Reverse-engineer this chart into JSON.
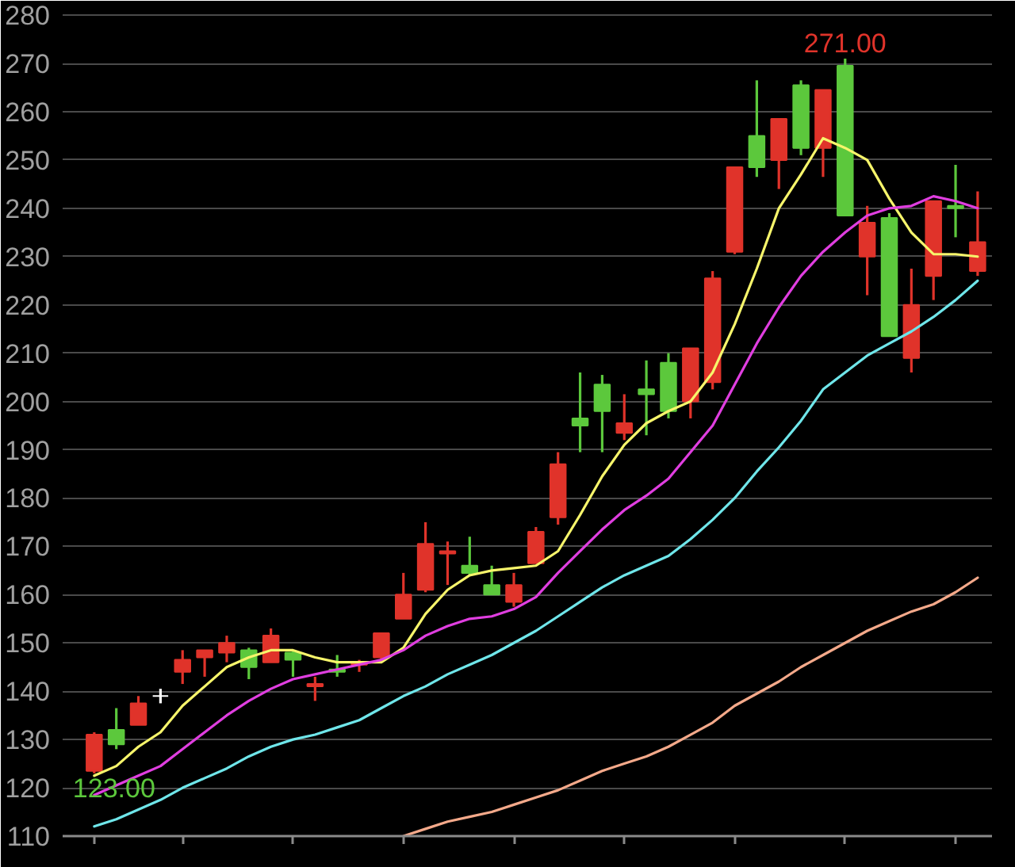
{
  "chart_data": {
    "type": "candlestick",
    "categories": [
      null,
      null,
      null,
      null,
      null,
      null,
      null,
      null,
      null,
      null,
      null,
      null,
      null,
      null,
      null,
      null,
      null,
      null,
      null,
      null,
      null,
      null,
      null,
      null,
      null,
      null,
      null,
      null,
      null,
      null,
      null,
      null,
      null,
      null,
      null,
      null,
      null,
      null,
      null,
      null,
      null
    ],
    "ohlc": [
      [
        123.5,
        131.5,
        123,
        131
      ],
      [
        132,
        136.5,
        128,
        129
      ],
      [
        133,
        139,
        133,
        137.5
      ],
      [
        139,
        140.5,
        137.5,
        139
      ],
      [
        144,
        148.5,
        141.5,
        146.5
      ],
      [
        147,
        148.5,
        143,
        148.5
      ],
      [
        148,
        151.5,
        146,
        150
      ],
      [
        148.5,
        149,
        142.5,
        145
      ],
      [
        146,
        153,
        146,
        151.5
      ],
      [
        148,
        148.5,
        143,
        146.5
      ],
      [
        141,
        143,
        138,
        141.5
      ],
      [
        144.5,
        147.5,
        143,
        144
      ],
      [
        145.5,
        146.5,
        144,
        146
      ],
      [
        147,
        152,
        146,
        152
      ],
      [
        155,
        164.5,
        155,
        160
      ],
      [
        161,
        175,
        160.5,
        170.5
      ],
      [
        168.5,
        171,
        162,
        169
      ],
      [
        166,
        172,
        164,
        164.5
      ],
      [
        162,
        166,
        160,
        160
      ],
      [
        158.5,
        164.5,
        157.5,
        162
      ],
      [
        166.5,
        174,
        166.5,
        173
      ],
      [
        176,
        189.5,
        174.5,
        187
      ],
      [
        196.5,
        206,
        189.5,
        195
      ],
      [
        203.5,
        205.5,
        189.5,
        198
      ],
      [
        193.5,
        201.5,
        192,
        195.5
      ],
      [
        202.5,
        208.5,
        193,
        201.5
      ],
      [
        208,
        210,
        196.5,
        198
      ],
      [
        200,
        211,
        196.5,
        211
      ],
      [
        204,
        227,
        202.5,
        225.5
      ],
      [
        231,
        248.5,
        230.5,
        248.5
      ],
      [
        255,
        266.5,
        246.5,
        248.5
      ],
      [
        250,
        258.5,
        244,
        258.5
      ],
      [
        265.5,
        266.5,
        251,
        252.5
      ],
      [
        252.5,
        264.5,
        246.5,
        264.5
      ],
      [
        269.5,
        271,
        238.5,
        238.5
      ],
      [
        230,
        240.5,
        222,
        237
      ],
      [
        238,
        239,
        213.5,
        213.5
      ],
      [
        209,
        227.5,
        206,
        220
      ],
      [
        226,
        241.5,
        221,
        241.5
      ],
      [
        240.5,
        249,
        234,
        240
      ],
      [
        227,
        243.5,
        226,
        233
      ]
    ],
    "colors": [
      "#e0332a",
      "#5cc83c",
      "#e0332a",
      "#ffffff",
      "#e0332a",
      "#e0332a",
      "#e0332a",
      "#5cc83c",
      "#e0332a",
      "#5cc83c",
      "#e0332a",
      "#5cc83c",
      "#e0332a",
      "#e0332a",
      "#e0332a",
      "#e0332a",
      "#e0332a",
      "#5cc83c",
      "#5cc83c",
      "#e0332a",
      "#e0332a",
      "#e0332a",
      "#5cc83c",
      "#5cc83c",
      "#e0332a",
      "#5cc83c",
      "#5cc83c",
      "#e0332a",
      "#e0332a",
      "#e0332a",
      "#5cc83c",
      "#e0332a",
      "#5cc83c",
      "#e0332a",
      "#5cc83c",
      "#e0332a",
      "#5cc83c",
      "#e0332a",
      "#e0332a",
      "#5cc83c",
      "#e0332a"
    ],
    "series": [
      {
        "type": "line",
        "color": "#f7f56b",
        "values": [
          122.5,
          124.5,
          128.5,
          131.5,
          137,
          141,
          145,
          147,
          148.5,
          148.5,
          147,
          146,
          146,
          146,
          149,
          156,
          161,
          164,
          165,
          165.5,
          166,
          169,
          176.5,
          184.5,
          191,
          195.5,
          198,
          200,
          206,
          216,
          227.5,
          240,
          247,
          254.5,
          252.5,
          250,
          242,
          235,
          230.5,
          230.5,
          230
        ]
      },
      {
        "type": "line",
        "color": "#e03ee0",
        "values": [
          118.5,
          120.5,
          122.5,
          124.5,
          128,
          131.5,
          135,
          138,
          140.5,
          142.5,
          143.5,
          144.5,
          145.5,
          146.5,
          148.5,
          151.5,
          153.5,
          155,
          155.5,
          157,
          159.5,
          164.5,
          169,
          173.5,
          177.5,
          180.5,
          184,
          189.5,
          195,
          203.5,
          212,
          219.5,
          226,
          231,
          235,
          238.5,
          240,
          240.5,
          242.5,
          241.5,
          240
        ]
      },
      {
        "type": "line",
        "color": "#6fe6ea",
        "values": [
          112,
          113.5,
          115.5,
          117.5,
          120,
          122,
          124,
          126.5,
          128.5,
          130,
          131,
          132.5,
          134,
          136.5,
          139,
          141,
          143.5,
          145.5,
          147.5,
          150,
          152.5,
          155.5,
          158.5,
          161.5,
          164,
          166,
          168,
          171.5,
          175.5,
          180,
          185.5,
          190.5,
          196,
          202.5,
          206,
          209.5,
          212,
          214.5,
          217.5,
          221,
          225
        ]
      },
      {
        "type": "line",
        "color": "#f4a98a",
        "values": [
          null,
          null,
          null,
          null,
          null,
          null,
          null,
          null,
          null,
          null,
          null,
          null,
          null,
          null,
          110,
          111.5,
          113,
          114,
          115,
          116.5,
          118,
          119.5,
          121.5,
          123.5,
          125,
          126.5,
          128.5,
          131,
          133.5,
          137,
          139.5,
          142,
          145,
          147.5,
          150,
          152.5,
          154.5,
          156.5,
          158,
          160.5,
          163.5
        ]
      }
    ],
    "ylim": [
      110,
      281
    ],
    "yticks": [
      110,
      120,
      130,
      140,
      150,
      160,
      170,
      180,
      190,
      200,
      210,
      220,
      230,
      240,
      250,
      260,
      270,
      280
    ],
    "grid": "y",
    "tick_labels": "y",
    "annotations": [
      {
        "text": "271.00",
        "y": 271
      },
      {
        "text": "123.00",
        "y": 123
      }
    ]
  }
}
